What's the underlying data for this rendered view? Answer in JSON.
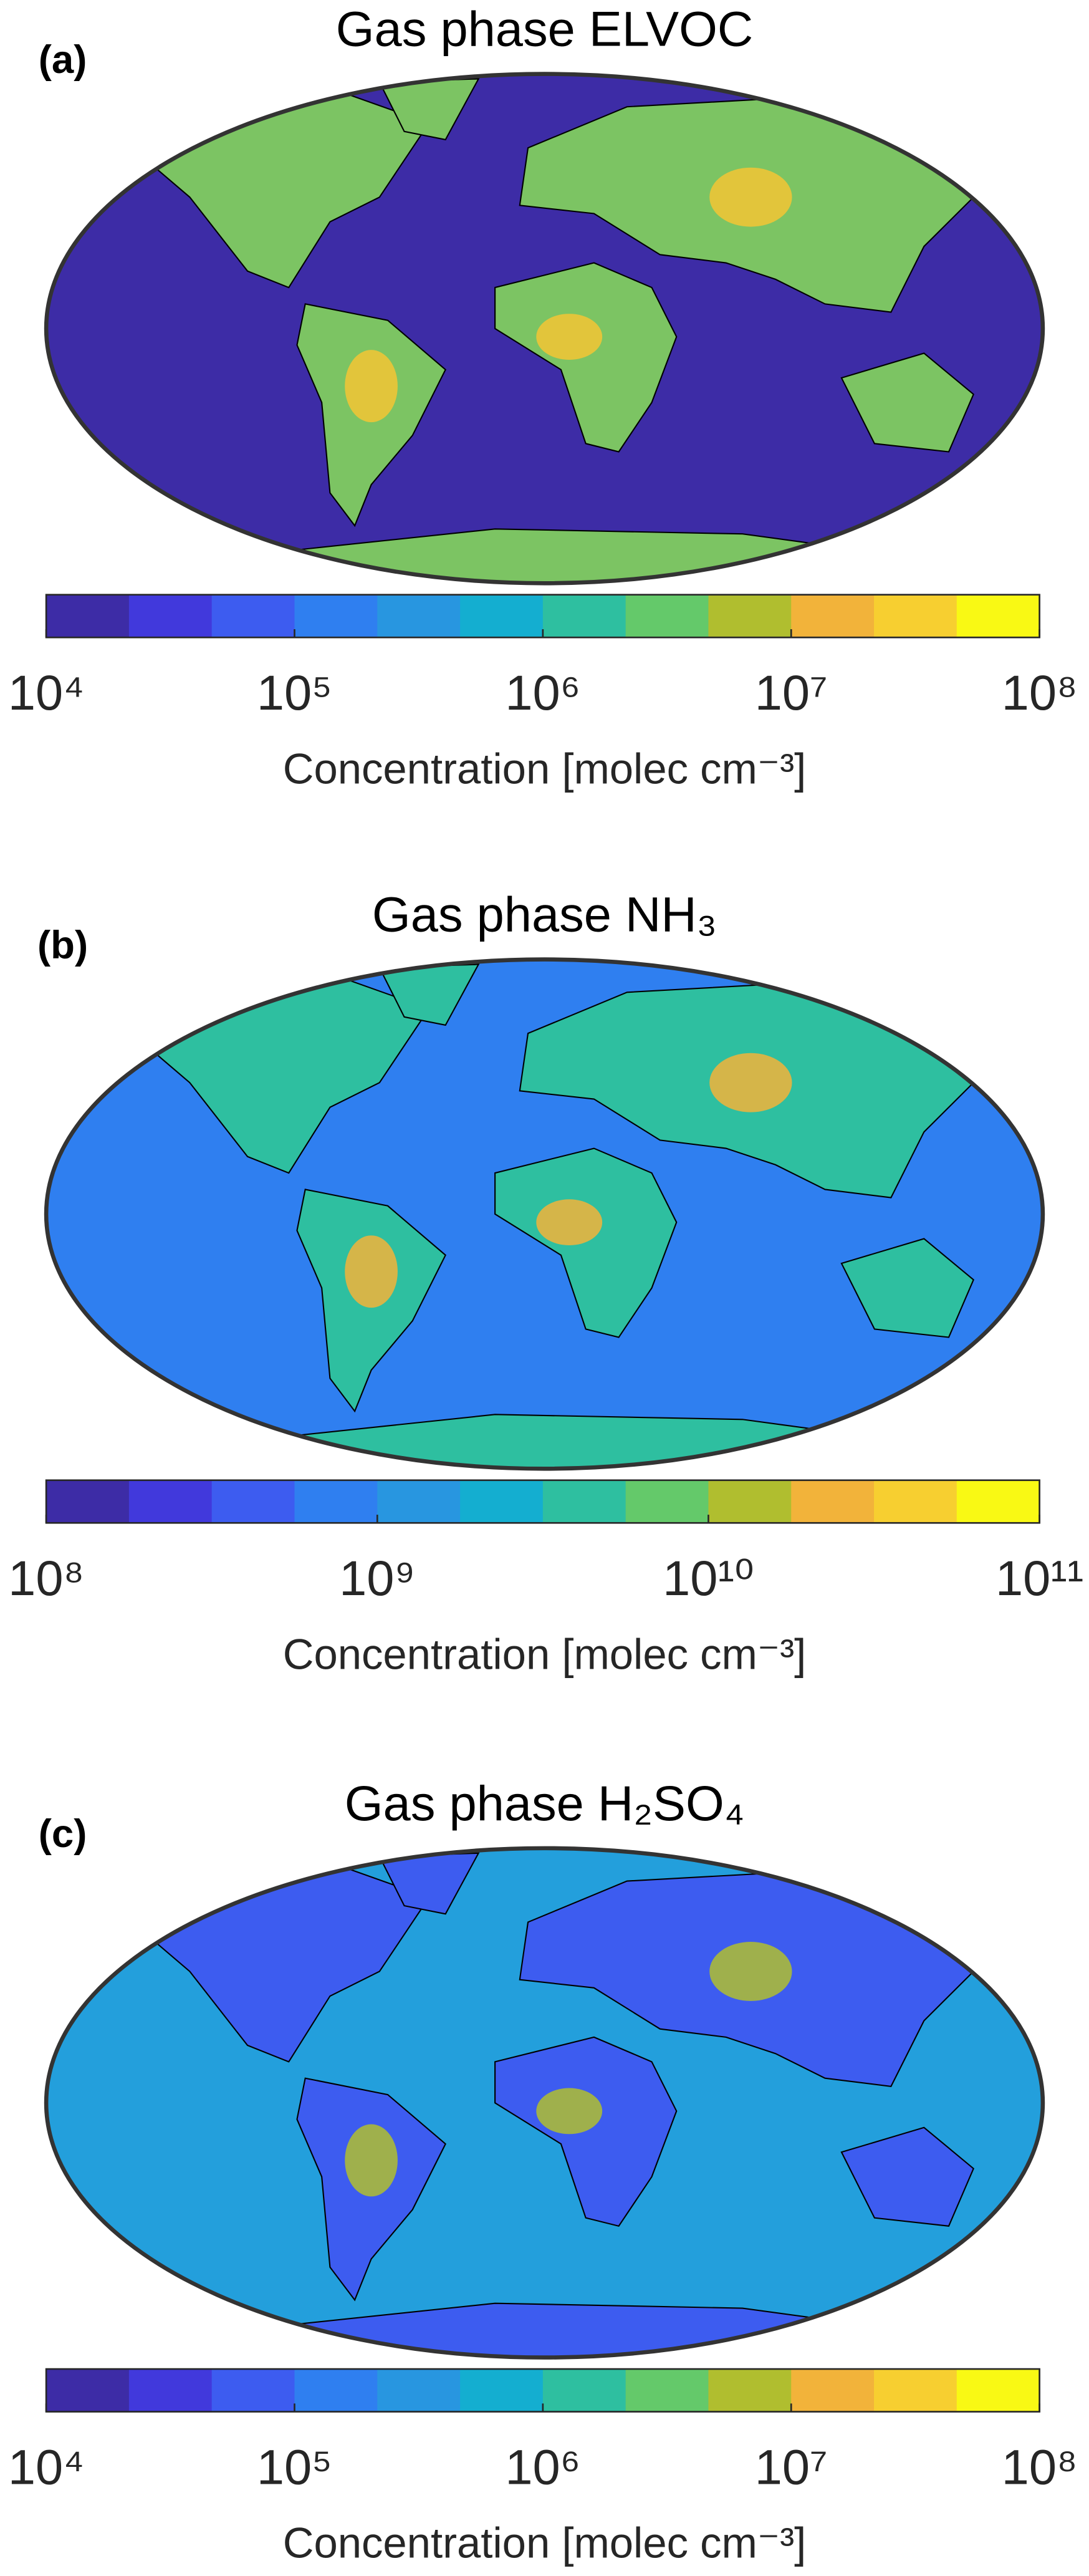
{
  "chart_data": [
    {
      "type": "map",
      "panel_label": "(a)",
      "title": "Gas phase ELVOC",
      "colorbar": {
        "scale": "log",
        "clim": [
          10000,
          100000000
        ],
        "ticks": [
          {
            "value": 10000,
            "label": "10⁴"
          },
          {
            "value": 100000,
            "label": "10⁵"
          },
          {
            "value": 1000000,
            "label": "10⁶"
          },
          {
            "value": 10000000,
            "label": "10⁷"
          },
          {
            "value": 100000000,
            "label": "10⁸"
          }
        ],
        "label": "Concentration [molec cm⁻³]",
        "colors": [
          "#3d2ca6",
          "#4139dc",
          "#3d5cf0",
          "#2f7ff0",
          "#2896e0",
          "#14aed0",
          "#2ebfa0",
          "#64c96a",
          "#b0be2f",
          "#f2b33a",
          "#f7cf30",
          "#f9f914"
        ]
      }
    },
    {
      "type": "map",
      "panel_label": "(b)",
      "title": "Gas phase NH₃",
      "colorbar": {
        "scale": "log",
        "clim": [
          100000000,
          100000000000
        ],
        "ticks": [
          {
            "value": 100000000,
            "label": "10⁸"
          },
          {
            "value": 1000000000,
            "label": "10⁹"
          },
          {
            "value": 10000000000,
            "label": "10¹⁰"
          },
          {
            "value": 100000000000,
            "label": "10¹¹"
          }
        ],
        "label": "Concentration [molec cm⁻³]",
        "colors": [
          "#3d2ca6",
          "#4139dc",
          "#3d5cf0",
          "#2f7ff0",
          "#2896e0",
          "#14aed0",
          "#2ebfa0",
          "#64c96a",
          "#b0be2f",
          "#f2b33a",
          "#f7cf30",
          "#f9f914"
        ]
      }
    },
    {
      "type": "map",
      "panel_label": "(c)",
      "title": "Gas phase H₂SO₄",
      "colorbar": {
        "scale": "log",
        "clim": [
          10000,
          100000000
        ],
        "ticks": [
          {
            "value": 10000,
            "label": "10⁴"
          },
          {
            "value": 100000,
            "label": "10⁵"
          },
          {
            "value": 1000000,
            "label": "10⁶"
          },
          {
            "value": 10000000,
            "label": "10⁷"
          },
          {
            "value": 100000000,
            "label": "10⁸"
          }
        ],
        "label": "Concentration [molec cm⁻³]",
        "colors": [
          "#3d2ca6",
          "#4139dc",
          "#3d5cf0",
          "#2f7ff0",
          "#2896e0",
          "#14aed0",
          "#2ebfa0",
          "#64c96a",
          "#b0be2f",
          "#f2b33a",
          "#f7cf30",
          "#f9f914"
        ]
      }
    }
  ]
}
